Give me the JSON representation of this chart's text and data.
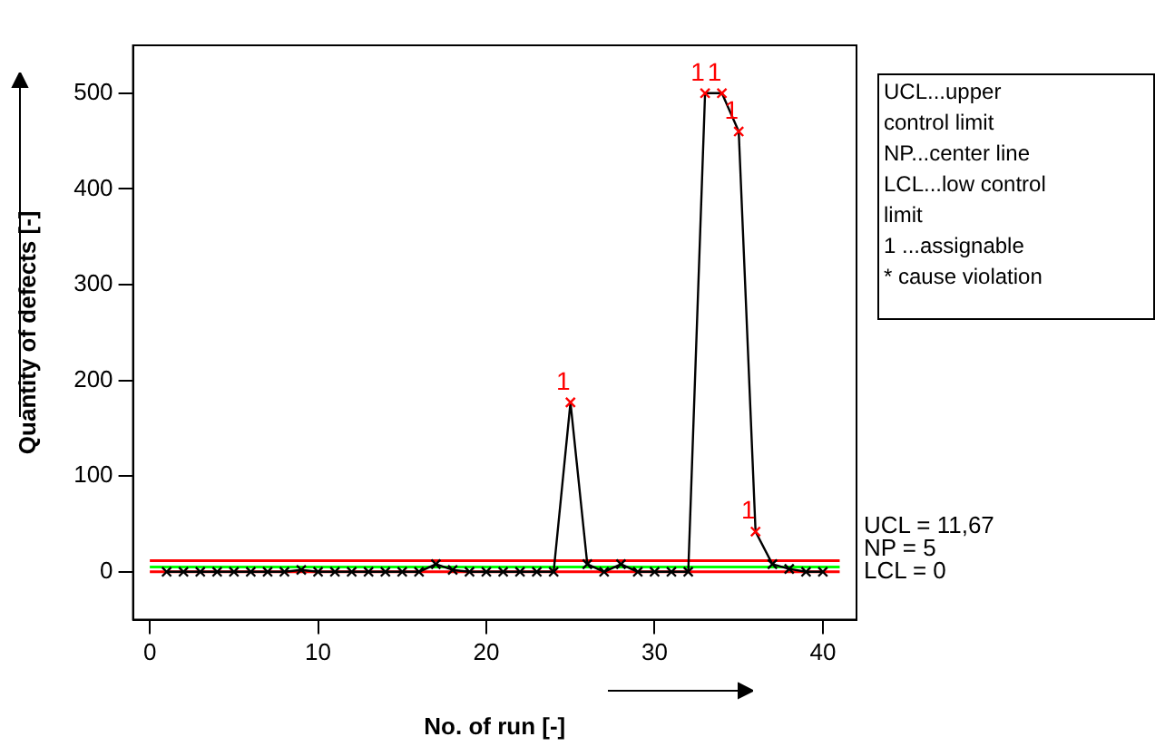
{
  "chart_data": {
    "type": "line",
    "xlabel": "No. of run [-]",
    "ylabel": "Quantity of defects [-]",
    "x": [
      1,
      2,
      3,
      4,
      5,
      6,
      7,
      8,
      9,
      10,
      11,
      12,
      13,
      14,
      15,
      16,
      17,
      18,
      19,
      20,
      21,
      22,
      23,
      24,
      25,
      26,
      27,
      28,
      29,
      30,
      31,
      32,
      33,
      34,
      35,
      36,
      37,
      38,
      39,
      40
    ],
    "series": [
      {
        "color": "#000000",
        "values": [
          0,
          0,
          0,
          0,
          0,
          0,
          0,
          0,
          2,
          0,
          0,
          0,
          0,
          0,
          0,
          0,
          8,
          2,
          0,
          0,
          0,
          0,
          0,
          0,
          177,
          8,
          0,
          8,
          0,
          0,
          0,
          0,
          500,
          500,
          460,
          42,
          8,
          3,
          0,
          0
        ],
        "colors": [
          "#000000",
          "#000000",
          "#000000",
          "#000000",
          "#000000",
          "#000000",
          "#000000",
          "#000000",
          "#000000",
          "#000000",
          "#000000",
          "#000000",
          "#000000",
          "#000000",
          "#000000",
          "#000000",
          "#000000",
          "#000000",
          "#000000",
          "#000000",
          "#000000",
          "#000000",
          "#000000",
          "#000000",
          "#ff0000",
          "#000000",
          "#000000",
          "#000000",
          "#000000",
          "#000000",
          "#000000",
          "#000000",
          "#ff0000",
          "#ff0000",
          "#ff0000",
          "#ff0000",
          "#000000",
          "#000000",
          "#000000",
          "#000000"
        ]
      }
    ],
    "xlim": [
      -1,
      42
    ],
    "xticks": [
      0,
      10,
      20,
      30,
      40
    ],
    "ylim": [
      -50,
      550
    ],
    "yticks": [
      0,
      100,
      200,
      300,
      400,
      500
    ],
    "grid": false,
    "legend": false,
    "marker": "cross",
    "line_style": "solid",
    "ref_lines": [
      {
        "axis": "y",
        "value": 11.67,
        "label": "UCL = 11,67",
        "color": "#ff0000"
      },
      {
        "axis": "y",
        "value": 5,
        "label": "NP = 5",
        "color": "#00ff00"
      },
      {
        "axis": "y",
        "value": 0,
        "label": "LCL = 0",
        "color": "#ff0000"
      }
    ],
    "annotations": [
      {
        "text": "1",
        "x": 25,
        "y": 177
      },
      {
        "text": "1",
        "x": 33,
        "y": 500
      },
      {
        "text": "1",
        "x": 34,
        "y": 500
      },
      {
        "text": "1",
        "x": 35,
        "y": 460
      },
      {
        "text": "1",
        "x": 36,
        "y": 42
      },
      "UCL...upper\ncontrol limit\nNP...center line\nLCL...low control\nlimit\n1 ...assignable\n* cause violation"
    ]
  }
}
